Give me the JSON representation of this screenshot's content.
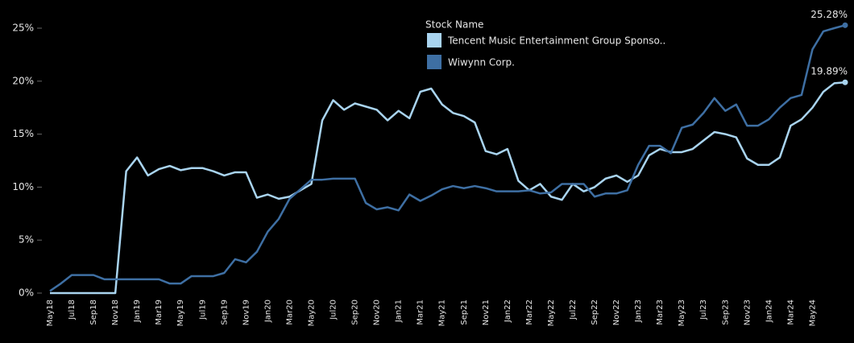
{
  "chart_data": {
    "type": "line",
    "legend_title": "Stock Name",
    "categories": [
      "May18",
      null,
      "Jul18",
      null,
      "Sep18",
      null,
      "Nov18",
      null,
      "Jan19",
      null,
      "Mar19",
      null,
      "May19",
      null,
      "Jul19",
      null,
      "Sep19",
      null,
      "Nov19",
      null,
      "Jan20",
      null,
      "Mar20",
      null,
      "May20",
      null,
      "Jul20",
      null,
      "Sep20",
      null,
      "Nov20",
      null,
      "Jan21",
      null,
      "Mar21",
      null,
      "May21",
      null,
      "Sep21",
      null,
      "Nov21",
      null,
      "Jan22",
      null,
      "Mar22",
      null,
      "May22",
      null,
      "Jul22",
      null,
      "Sep22",
      null,
      "Nov22",
      null,
      "Jan23",
      null,
      "Mar23",
      null,
      "May23",
      null,
      "Jul23",
      null,
      "Sep23",
      null,
      "Nov23",
      null,
      "Jan24",
      null,
      "Mar24",
      null,
      "May24",
      null,
      null,
      null
    ],
    "series": [
      {
        "name": "Tencent Music Entertainment Group Sponso..",
        "color": "#a9d4ef",
        "values": [
          0,
          0,
          0,
          0,
          0,
          0,
          0,
          11.5,
          12.8,
          11.1,
          11.7,
          12.0,
          11.6,
          11.8,
          11.8,
          11.5,
          11.1,
          11.4,
          11.4,
          9.0,
          9.3,
          8.9,
          9.1,
          9.7,
          10.3,
          16.3,
          18.2,
          17.3,
          17.9,
          17.6,
          17.3,
          16.3,
          17.2,
          16.5,
          19.0,
          19.3,
          17.8,
          17.0,
          16.7,
          16.1,
          13.4,
          13.1,
          13.6,
          10.6,
          9.7,
          10.3,
          9.1,
          8.8,
          10.3,
          9.6,
          10.0,
          10.8,
          11.1,
          10.5,
          11.1,
          13.0,
          13.6,
          13.3,
          13.3,
          13.6,
          14.4,
          15.2,
          15.0,
          14.7,
          12.7,
          12.1,
          12.1,
          12.8,
          15.8,
          16.4,
          17.5,
          19.0,
          19.8,
          19.89
        ],
        "value_labels": [
          null,
          null,
          null,
          null,
          null,
          null,
          null,
          null,
          null,
          null,
          null,
          null,
          null,
          null,
          null,
          null,
          null,
          null,
          null,
          null,
          null,
          null,
          null,
          null,
          null,
          null,
          null,
          null,
          null,
          null,
          null,
          null,
          null,
          null,
          null,
          null,
          null,
          null,
          null,
          null,
          null,
          null,
          null,
          null,
          null,
          null,
          null,
          null,
          null,
          null,
          null,
          null,
          null,
          null,
          null,
          null,
          null,
          null,
          null,
          null,
          null,
          null,
          null,
          null,
          null,
          null,
          null,
          null,
          null,
          null,
          null,
          null,
          null,
          "19.89%"
        ]
      },
      {
        "name": "Wiwynn Corp.",
        "color": "#3e6fa3",
        "values": [
          0.2,
          0.9,
          1.7,
          1.7,
          1.7,
          1.3,
          1.3,
          1.3,
          1.3,
          1.3,
          1.3,
          0.9,
          0.9,
          1.6,
          1.6,
          1.6,
          1.9,
          3.2,
          2.9,
          3.9,
          5.8,
          7.0,
          8.9,
          9.8,
          10.7,
          10.7,
          10.8,
          10.8,
          10.8,
          8.5,
          7.9,
          8.1,
          7.8,
          9.3,
          8.7,
          9.2,
          9.8,
          10.1,
          9.9,
          10.1,
          9.9,
          9.6,
          9.6,
          9.6,
          9.7,
          9.4,
          9.5,
          10.3,
          10.3,
          10.3,
          9.1,
          9.4,
          9.4,
          9.7,
          12.1,
          13.9,
          13.9,
          13.2,
          15.6,
          15.9,
          17.0,
          18.4,
          17.2,
          17.8,
          15.8,
          15.8,
          16.4,
          17.5,
          18.4,
          18.7,
          23.0,
          24.7,
          25.0,
          25.28
        ],
        "value_labels": [
          null,
          null,
          null,
          null,
          null,
          null,
          null,
          null,
          null,
          null,
          null,
          null,
          null,
          null,
          null,
          null,
          null,
          null,
          null,
          null,
          null,
          null,
          null,
          null,
          null,
          null,
          null,
          null,
          null,
          null,
          null,
          null,
          null,
          null,
          null,
          null,
          null,
          null,
          null,
          null,
          null,
          null,
          null,
          null,
          null,
          null,
          null,
          null,
          null,
          null,
          null,
          null,
          null,
          null,
          null,
          null,
          null,
          null,
          null,
          null,
          null,
          null,
          null,
          null,
          null,
          null,
          null,
          null,
          null,
          null,
          null,
          null,
          null,
          "25.28%"
        ]
      }
    ],
    "ylim": [
      0,
      25
    ],
    "yticks": [
      {
        "value": 0,
        "label": "0%"
      },
      {
        "value": 5,
        "label": "5%"
      },
      {
        "value": 10,
        "label": "10%"
      },
      {
        "value": 15,
        "label": "15%"
      },
      {
        "value": 20,
        "label": "20%"
      },
      {
        "value": 25,
        "label": "25%"
      }
    ],
    "grid": false
  }
}
